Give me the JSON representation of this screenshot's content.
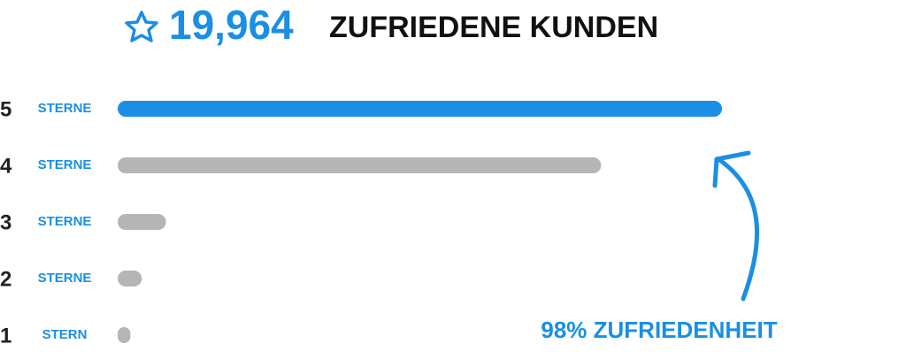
{
  "chart_data": {
    "type": "bar",
    "orientation": "horizontal",
    "headline_count": "19,964",
    "title": "ZUFRIEDENE KUNDEN",
    "categories": [
      "5",
      "4",
      "3",
      "2",
      "1"
    ],
    "category_units": [
      "STERNE",
      "STERNE",
      "STERNE",
      "STERNE",
      "STERN"
    ],
    "values": [
      100,
      80,
      8,
      4,
      2
    ],
    "colors": [
      "#1a8fe3",
      "#b5b5b5",
      "#b5b5b5",
      "#b5b5b5",
      "#b5b5b5"
    ],
    "xlim": [
      0,
      100
    ],
    "annotation": "98% ZUFRIEDENHEIT"
  }
}
